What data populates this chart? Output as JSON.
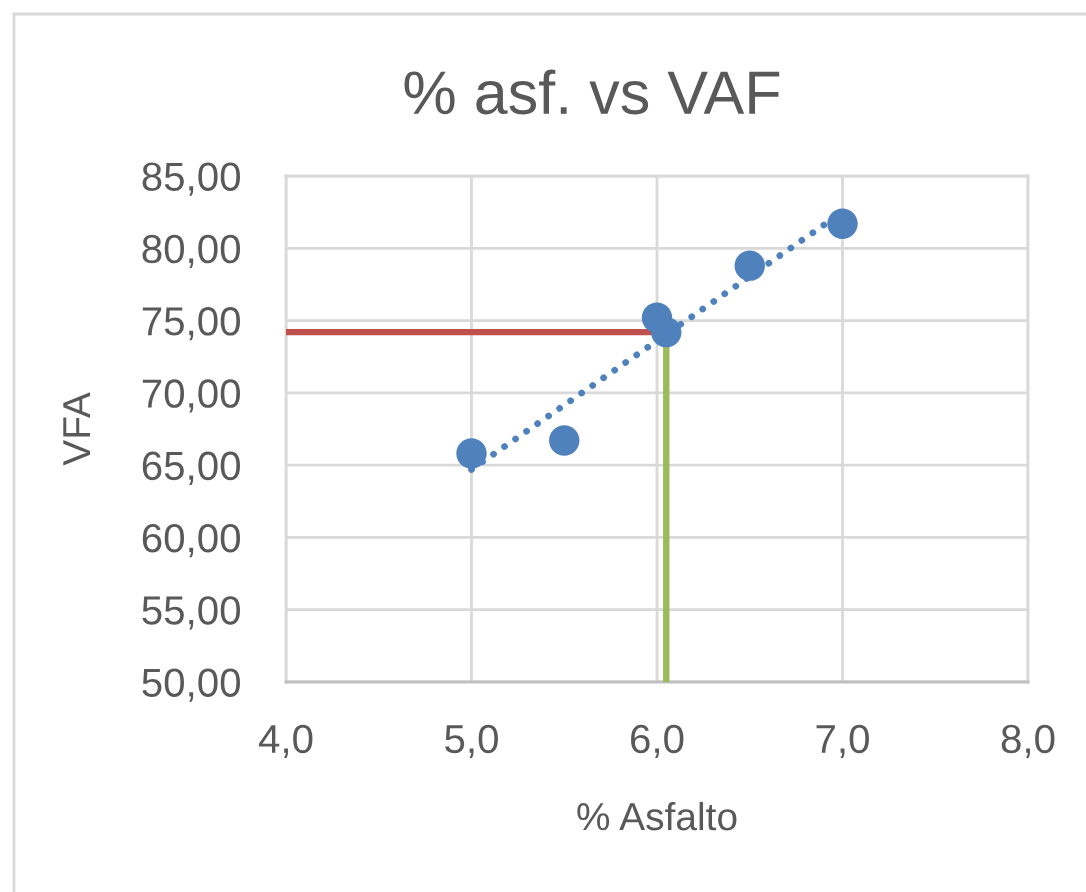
{
  "chart_data": {
    "type": "scatter",
    "title": "% asf. vs VAF",
    "xlabel": "% Asfalto",
    "ylabel": "VFA",
    "xlim": [
      4,
      8
    ],
    "ylim": [
      50,
      85
    ],
    "xticks": [
      {
        "value": 4,
        "label": "4,0"
      },
      {
        "value": 5,
        "label": "5,0"
      },
      {
        "value": 6,
        "label": "6,0"
      },
      {
        "value": 7,
        "label": "7,0"
      },
      {
        "value": 8,
        "label": "8,0"
      }
    ],
    "yticks": [
      {
        "value": 50,
        "label": "50,00"
      },
      {
        "value": 55,
        "label": "55,00"
      },
      {
        "value": 60,
        "label": "60,00"
      },
      {
        "value": 65,
        "label": "65,00"
      },
      {
        "value": 70,
        "label": "70,00"
      },
      {
        "value": 75,
        "label": "75,00"
      },
      {
        "value": 80,
        "label": "80,00"
      },
      {
        "value": 85,
        "label": "85,00"
      }
    ],
    "grid": true,
    "series": [
      {
        "type": "line",
        "color": "#c0504d",
        "x": [
          4,
          6.05
        ],
        "values": [
          74.2,
          74.2
        ],
        "line_style": "solid",
        "marker": "none"
      },
      {
        "type": "line",
        "color": "#9bbb59",
        "x": [
          6.05,
          6.05
        ],
        "values": [
          50,
          74.2
        ],
        "line_style": "solid",
        "marker": "none"
      },
      {
        "type": "line",
        "color": "#4f81bd",
        "x": [
          5,
          7
        ],
        "values": [
          64.7,
          82.5
        ],
        "line_style": "dotted",
        "marker": "none"
      },
      {
        "color": "#4f81bd",
        "x": [
          5,
          5.5,
          6,
          6.05,
          6.5,
          7
        ],
        "values": [
          65.8,
          66.7,
          75.2,
          74.2,
          78.8,
          81.7
        ],
        "marker": "circle"
      }
    ]
  }
}
